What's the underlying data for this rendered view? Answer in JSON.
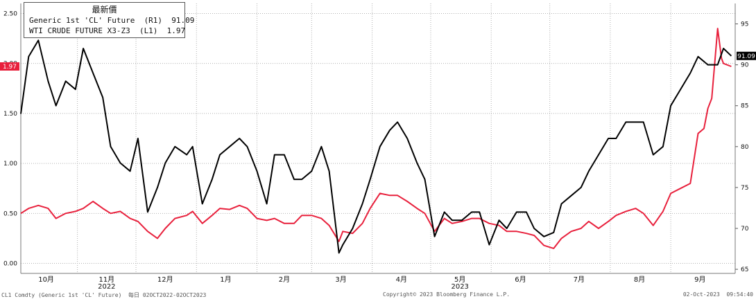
{
  "legend": {
    "title": "最新價",
    "series1_label": "Generic 1st 'CL' Future  (R1)  91.09",
    "series2_label": "WTI CRUDE FUTURE X3-Z3  (L1)  1.97"
  },
  "footer": {
    "left": "CL1 Comdty (Generic 1st 'CL' Future)  每日 02OCT2022-02OCT2023",
    "center": "Copyright© 2023 Bloomberg Finance L.P.",
    "right": "02-Oct-2023  09:54:40"
  },
  "colors": {
    "series1": "#000000",
    "series2": "#e8203c",
    "grid": "#b0b0b0"
  },
  "chart_data": {
    "type": "line",
    "x_tick_labels": [
      "10月",
      "11月",
      "12月",
      "1月",
      "2月",
      "3月",
      "4月",
      "5月",
      "6月",
      "7月",
      "8月",
      "9月"
    ],
    "year_labels": [
      "2022",
      "2023"
    ],
    "left_axis": {
      "ticks": [
        "0.00",
        "0.50",
        "1.00",
        "1.50",
        "2.00",
        "2.50"
      ],
      "ylim": [
        -0.1,
        2.6
      ]
    },
    "right_axis": {
      "ticks": [
        "65",
        "70",
        "75",
        "80",
        "85",
        "90",
        "95"
      ],
      "ylim": [
        64.5,
        97.5
      ]
    },
    "last_values": {
      "left": "1.97",
      "right": "91.09"
    },
    "series": [
      {
        "name": "Generic 1st 'CL' Future",
        "axis": "right",
        "color": "#000000",
        "x": [
          "2022-10-03",
          "2022-10-07",
          "2022-10-12",
          "2022-10-17",
          "2022-10-21",
          "2022-10-26",
          "2022-10-31",
          "2022-11-04",
          "2022-11-09",
          "2022-11-14",
          "2022-11-18",
          "2022-11-23",
          "2022-11-28",
          "2022-12-02",
          "2022-12-07",
          "2022-12-12",
          "2022-12-16",
          "2022-12-21",
          "2022-12-27",
          "2022-12-30",
          "2023-01-04",
          "2023-01-09",
          "2023-01-13",
          "2023-01-18",
          "2023-01-23",
          "2023-01-27",
          "2023-02-01",
          "2023-02-06",
          "2023-02-10",
          "2023-02-15",
          "2023-02-20",
          "2023-02-24",
          "2023-03-01",
          "2023-03-06",
          "2023-03-10",
          "2023-03-15",
          "2023-03-17",
          "2023-03-22",
          "2023-03-27",
          "2023-03-31",
          "2023-04-05",
          "2023-04-10",
          "2023-04-14",
          "2023-04-19",
          "2023-04-24",
          "2023-04-28",
          "2023-05-03",
          "2023-05-08",
          "2023-05-12",
          "2023-05-17",
          "2023-05-22",
          "2023-05-26",
          "2023-05-31",
          "2023-06-05",
          "2023-06-09",
          "2023-06-14",
          "2023-06-19",
          "2023-06-23",
          "2023-06-28",
          "2023-07-03",
          "2023-07-07",
          "2023-07-12",
          "2023-07-17",
          "2023-07-21",
          "2023-07-26",
          "2023-07-31",
          "2023-08-04",
          "2023-08-09",
          "2023-08-14",
          "2023-08-18",
          "2023-08-23",
          "2023-08-28",
          "2023-09-01",
          "2023-09-06",
          "2023-09-11",
          "2023-09-15",
          "2023-09-20",
          "2023-09-25",
          "2023-09-28",
          "2023-10-02"
        ],
        "values": [
          84,
          91,
          93,
          88,
          85,
          88,
          87,
          92,
          89,
          86,
          80,
          78,
          77,
          81,
          72,
          75,
          78,
          80,
          79,
          80,
          73,
          76,
          79,
          80,
          81,
          80,
          77,
          73,
          79,
          79,
          76,
          76,
          77,
          80,
          77,
          67,
          68,
          70,
          73,
          76,
          80,
          82,
          83,
          81,
          78,
          76,
          69,
          72,
          71,
          71,
          72,
          72,
          68,
          71,
          70,
          72,
          72,
          70,
          69,
          69.5,
          73,
          74,
          75,
          77,
          79,
          81,
          81,
          83,
          83,
          83,
          79,
          80,
          85,
          87,
          89,
          91,
          90,
          90,
          92,
          91.09
        ]
      },
      {
        "name": "WTI CRUDE FUTURE X3-Z3",
        "axis": "left",
        "color": "#e8203c",
        "x": [
          "2022-10-03",
          "2022-10-07",
          "2022-10-12",
          "2022-10-17",
          "2022-10-21",
          "2022-10-26",
          "2022-10-31",
          "2022-11-04",
          "2022-11-09",
          "2022-11-14",
          "2022-11-18",
          "2022-11-23",
          "2022-11-28",
          "2022-12-02",
          "2022-12-07",
          "2022-12-12",
          "2022-12-16",
          "2022-12-21",
          "2022-12-27",
          "2022-12-30",
          "2023-01-04",
          "2023-01-09",
          "2023-01-13",
          "2023-01-18",
          "2023-01-23",
          "2023-01-27",
          "2023-02-01",
          "2023-02-06",
          "2023-02-10",
          "2023-02-15",
          "2023-02-20",
          "2023-02-24",
          "2023-03-01",
          "2023-03-06",
          "2023-03-10",
          "2023-03-15",
          "2023-03-17",
          "2023-03-22",
          "2023-03-27",
          "2023-03-31",
          "2023-04-05",
          "2023-04-10",
          "2023-04-14",
          "2023-04-19",
          "2023-04-24",
          "2023-04-28",
          "2023-05-03",
          "2023-05-08",
          "2023-05-12",
          "2023-05-17",
          "2023-05-22",
          "2023-05-26",
          "2023-05-31",
          "2023-06-05",
          "2023-06-09",
          "2023-06-14",
          "2023-06-19",
          "2023-06-23",
          "2023-06-28",
          "2023-07-03",
          "2023-07-07",
          "2023-07-12",
          "2023-07-17",
          "2023-07-21",
          "2023-07-26",
          "2023-07-31",
          "2023-08-04",
          "2023-08-09",
          "2023-08-14",
          "2023-08-18",
          "2023-08-23",
          "2023-08-28",
          "2023-09-01",
          "2023-09-06",
          "2023-09-11",
          "2023-09-15",
          "2023-09-18",
          "2023-09-20",
          "2023-09-22",
          "2023-09-25",
          "2023-09-27",
          "2023-09-28",
          "2023-10-02"
        ],
        "values": [
          0.5,
          0.55,
          0.58,
          0.55,
          0.45,
          0.5,
          0.52,
          0.55,
          0.62,
          0.55,
          0.5,
          0.52,
          0.45,
          0.42,
          0.32,
          0.25,
          0.35,
          0.45,
          0.48,
          0.52,
          0.4,
          0.48,
          0.55,
          0.54,
          0.58,
          0.55,
          0.45,
          0.43,
          0.45,
          0.4,
          0.4,
          0.48,
          0.48,
          0.45,
          0.38,
          0.22,
          0.32,
          0.3,
          0.4,
          0.55,
          0.7,
          0.68,
          0.68,
          0.62,
          0.55,
          0.5,
          0.32,
          0.45,
          0.4,
          0.42,
          0.45,
          0.45,
          0.4,
          0.38,
          0.32,
          0.32,
          0.3,
          0.28,
          0.18,
          0.15,
          0.25,
          0.32,
          0.35,
          0.42,
          0.35,
          0.42,
          0.48,
          0.52,
          0.55,
          0.5,
          0.38,
          0.52,
          0.7,
          0.75,
          0.8,
          1.3,
          1.35,
          1.55,
          1.65,
          2.35,
          2.05,
          2.0,
          1.97
        ]
      }
    ],
    "grid": true
  }
}
